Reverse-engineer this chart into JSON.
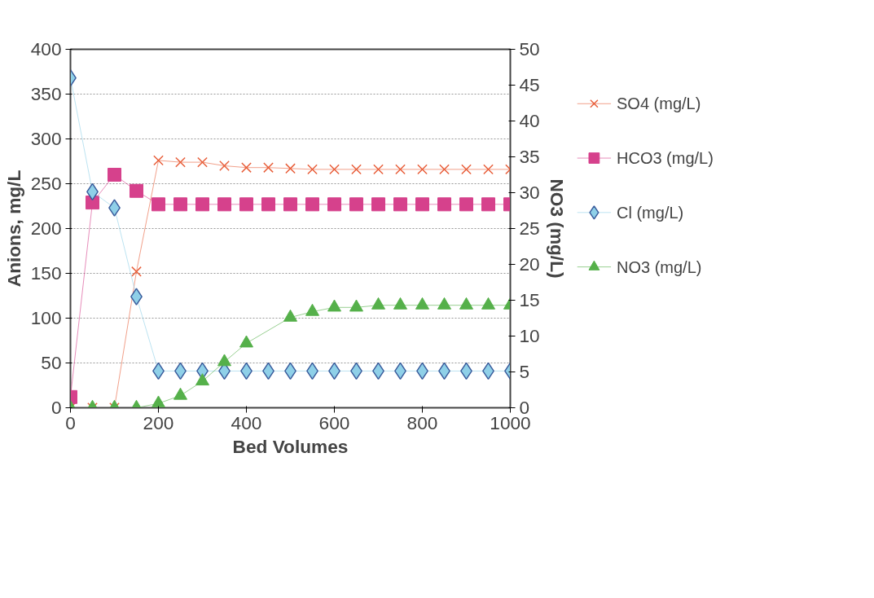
{
  "chart_data": {
    "type": "line",
    "xlabel": "Bed Volumes",
    "ylabel": "Anions, mg/L",
    "y2label": "NO3 (mg/L)",
    "x": [
      0,
      50,
      100,
      150,
      200,
      250,
      300,
      350,
      400,
      450,
      500,
      550,
      600,
      650,
      700,
      750,
      800,
      850,
      900,
      950,
      1000
    ],
    "xlim": [
      0,
      1000
    ],
    "xticks": [
      0,
      200,
      400,
      600,
      800,
      1000
    ],
    "ylim": [
      0,
      400
    ],
    "yticks": [
      0,
      50,
      100,
      150,
      200,
      250,
      300,
      350,
      400
    ],
    "y2lim": [
      0,
      50
    ],
    "y2ticks": [
      0,
      5,
      10,
      15,
      20,
      25,
      30,
      35,
      40,
      45,
      50
    ],
    "grid": "y",
    "legend": "right",
    "series": [
      {
        "name": "SO4 (mg/L)",
        "color": "#e8603c",
        "marker": "cross",
        "values": [
          0,
          0,
          0,
          152,
          276,
          274,
          274,
          270,
          268,
          268,
          267,
          266,
          266,
          266,
          266,
          266,
          266,
          266,
          266,
          266,
          266
        ]
      },
      {
        "name": "HCO3 (mg/L)",
        "color": "#d6418c",
        "marker": "square",
        "values": [
          12,
          229,
          260,
          242,
          227,
          227,
          227,
          227,
          227,
          227,
          227,
          227,
          227,
          227,
          227,
          227,
          227,
          227,
          227,
          227,
          227
        ]
      },
      {
        "name": "Cl (mg/L)",
        "color": "#8fd0e8",
        "marker": "diamond",
        "values": [
          368,
          241,
          223,
          124,
          41,
          41,
          41,
          41,
          41,
          41,
          41,
          41,
          41,
          41,
          41,
          41,
          41,
          41,
          41,
          41,
          41
        ]
      },
      {
        "name": "NO3 (mg/L)",
        "color": "#55b04a",
        "marker": "triangle",
        "axis": "y2",
        "values": [
          0,
          0,
          0,
          0,
          0.6,
          1.7,
          3.7,
          6.4,
          9.0,
          null,
          12.6,
          13.4,
          14.0,
          14.0,
          14.3,
          14.3,
          14.3,
          14.3,
          14.3,
          14.3,
          14.3
        ]
      }
    ]
  }
}
